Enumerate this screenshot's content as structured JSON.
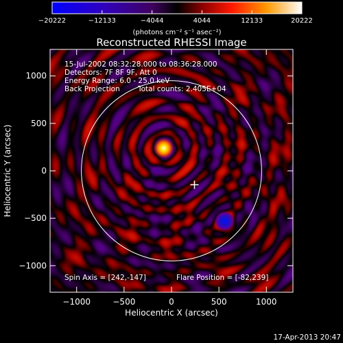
{
  "chart_data": {
    "type": "heatmap",
    "title": "Reconstructed RHESSI Image",
    "xlabel": "Heliocentric X (arcsec)",
    "ylabel": "Heliocentric Y (arcsec)",
    "xlim": [
      -1280,
      1280
    ],
    "ylim": [
      -1280,
      1280
    ],
    "x_ticks": [
      -1000,
      -500,
      0,
      500,
      1000
    ],
    "y_ticks": [
      -1000,
      -500,
      0,
      500,
      1000
    ],
    "x_tick_labels": [
      "−1000",
      "−500",
      "0",
      "500",
      "1000"
    ],
    "y_tick_labels": [
      "−1000",
      "−500",
      "0",
      "500",
      "1000"
    ],
    "solar_disk_radius": 950,
    "info_lines": [
      "15-Jul-2002 08:32:28.000 to 08:36:28.000",
      "Detectors: 7F 8F 9F, Att 0",
      "Energy Range: 6.0 - 25.0 keV",
      "Back Projection"
    ],
    "total_counts": "Total counts: 2.405E+04",
    "spin_axis_text": "Spin Axis = [242,-147]",
    "flare_position_text": "Flare Position = [-82,239]",
    "spin_axis": [
      242,
      -147
    ],
    "flare_position": [
      -82,
      239
    ],
    "sources": [
      {
        "kind": "bright",
        "x": -82,
        "y": 239
      },
      {
        "kind": "dark",
        "x": 560,
        "y": -530
      }
    ],
    "colorbar": {
      "range": [
        -20222,
        20222
      ],
      "tick_values": [
        -20222,
        -12133,
        -4044,
        4044,
        12133,
        20222
      ],
      "tick_labels": [
        "−20222",
        "−12133",
        "−4044",
        "4044",
        "12133",
        "20222"
      ],
      "label": "(photons cm⁻² s⁻¹ asec⁻²)"
    },
    "footer_timestamp": "17-Apr-2013 20:47"
  }
}
